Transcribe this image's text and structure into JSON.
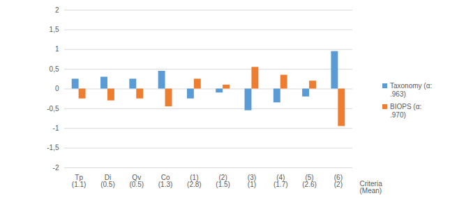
{
  "chart_data": {
    "type": "bar",
    "categories": [
      "Tp\n(1.1)",
      "Di\n(0.5)",
      "Qv\n(0.5)",
      "Co\n(1.3)",
      "(1)\n(2.8)",
      "(2)\n(1.5)",
      "(3)\n(1)",
      "(4)\n(1.7)",
      "(5)\n(2.6)",
      "(6)\n(2)"
    ],
    "series": [
      {
        "name": "Taxonomy (α: .963)",
        "color": "#5b9bd5",
        "values": [
          0.25,
          0.3,
          0.25,
          0.45,
          -0.25,
          -0.1,
          -0.55,
          -0.35,
          -0.2,
          0.95
        ]
      },
      {
        "name": "BIOPS (α: .970)",
        "color": "#ed7d31",
        "values": [
          -0.25,
          -0.3,
          -0.25,
          -0.45,
          0.25,
          0.1,
          0.55,
          0.35,
          0.2,
          -0.95
        ]
      }
    ],
    "x_label": "Criteria\n(Mean)",
    "ylim": [
      -2,
      2
    ],
    "yticks": [
      -2,
      {
        "value": -1.5,
        "label": "-1,5"
      },
      -1,
      {
        "value": -0.5,
        "label": "-0,5"
      },
      0,
      {
        "value": 0.5,
        "label": "0,5"
      },
      1,
      {
        "value": 1.5,
        "label": "1,5"
      },
      2
    ],
    "grid": true,
    "legend": "right"
  }
}
